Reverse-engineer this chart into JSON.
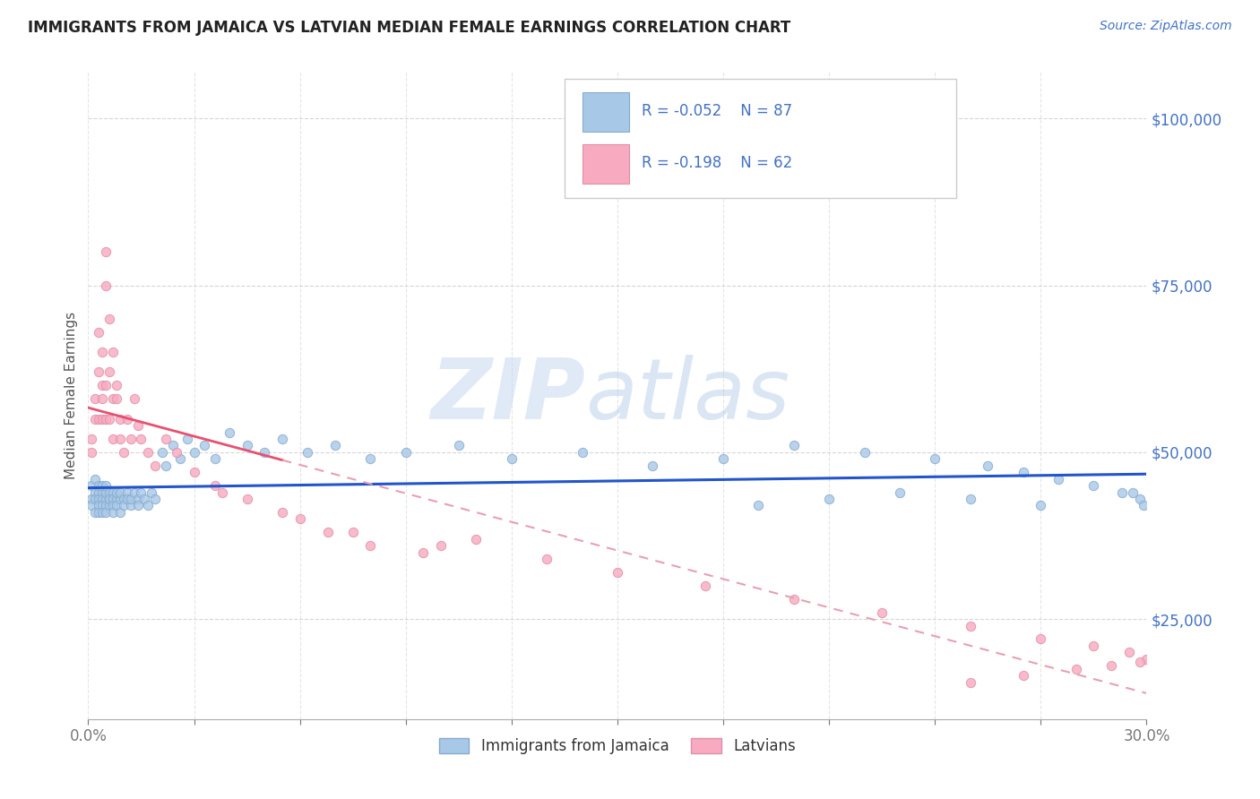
{
  "title": "IMMIGRANTS FROM JAMAICA VS LATVIAN MEDIAN FEMALE EARNINGS CORRELATION CHART",
  "source_text": "Source: ZipAtlas.com",
  "ylabel": "Median Female Earnings",
  "xlim": [
    0.0,
    0.3
  ],
  "ylim": [
    10000,
    107000
  ],
  "xticks": [
    0.0,
    0.03,
    0.06,
    0.09,
    0.12,
    0.15,
    0.18,
    0.21,
    0.24,
    0.27,
    0.3
  ],
  "xtick_labels": [
    "0.0%",
    "",
    "",
    "",
    "",
    "",
    "",
    "",
    "",
    "",
    "30.0%"
  ],
  "ytick_positions": [
    25000,
    50000,
    75000,
    100000
  ],
  "ytick_labels": [
    "$25,000",
    "$50,000",
    "$75,000",
    "$100,000"
  ],
  "series1_color": "#a8c8e8",
  "series2_color": "#f8aac0",
  "series1_line_color": "#2255cc",
  "series2_line_solid_color": "#e85070",
  "series2_line_dash_color": "#e8a0b0",
  "legend_r1": "R = -0.052",
  "legend_n1": "N = 87",
  "legend_r2": "R = -0.198",
  "legend_n2": "N = 62",
  "legend_label1": "Immigrants from Jamaica",
  "legend_label2": "Latvians",
  "watermark_zip": "ZIP",
  "watermark_atlas": "atlas",
  "background_color": "#ffffff",
  "grid_color": "#cccccc",
  "title_color": "#222222",
  "axis_label_color": "#555555",
  "legend_text_color": "#4472c4",
  "ytick_color": "#4472c4",
  "xtick_color": "#777777",
  "series1_x": [
    0.001,
    0.001,
    0.001,
    0.002,
    0.002,
    0.002,
    0.002,
    0.003,
    0.003,
    0.003,
    0.003,
    0.003,
    0.004,
    0.004,
    0.004,
    0.004,
    0.004,
    0.005,
    0.005,
    0.005,
    0.005,
    0.005,
    0.006,
    0.006,
    0.006,
    0.006,
    0.007,
    0.007,
    0.007,
    0.007,
    0.008,
    0.008,
    0.008,
    0.009,
    0.009,
    0.009,
    0.01,
    0.01,
    0.011,
    0.011,
    0.012,
    0.012,
    0.013,
    0.014,
    0.014,
    0.015,
    0.016,
    0.017,
    0.018,
    0.019,
    0.021,
    0.022,
    0.024,
    0.026,
    0.028,
    0.03,
    0.033,
    0.036,
    0.04,
    0.045,
    0.05,
    0.055,
    0.062,
    0.07,
    0.08,
    0.09,
    0.105,
    0.12,
    0.14,
    0.16,
    0.18,
    0.2,
    0.22,
    0.24,
    0.255,
    0.265,
    0.275,
    0.285,
    0.293,
    0.298,
    0.299,
    0.296,
    0.27,
    0.25,
    0.23,
    0.21,
    0.19
  ],
  "series1_y": [
    43000,
    45000,
    42000,
    44000,
    46000,
    43000,
    41000,
    44000,
    43000,
    45000,
    42000,
    41000,
    44000,
    43000,
    45000,
    42000,
    41000,
    43000,
    44000,
    42000,
    45000,
    41000,
    43000,
    44000,
    42000,
    43000,
    44000,
    43000,
    42000,
    41000,
    43000,
    44000,
    42000,
    43000,
    41000,
    44000,
    43000,
    42000,
    44000,
    43000,
    42000,
    43000,
    44000,
    43000,
    42000,
    44000,
    43000,
    42000,
    44000,
    43000,
    50000,
    48000,
    51000,
    49000,
    52000,
    50000,
    51000,
    49000,
    53000,
    51000,
    50000,
    52000,
    50000,
    51000,
    49000,
    50000,
    51000,
    49000,
    50000,
    48000,
    49000,
    51000,
    50000,
    49000,
    48000,
    47000,
    46000,
    45000,
    44000,
    43000,
    42000,
    44000,
    42000,
    43000,
    44000,
    43000,
    42000
  ],
  "series2_x": [
    0.001,
    0.001,
    0.002,
    0.002,
    0.003,
    0.003,
    0.003,
    0.004,
    0.004,
    0.004,
    0.004,
    0.005,
    0.005,
    0.005,
    0.005,
    0.006,
    0.006,
    0.006,
    0.007,
    0.007,
    0.007,
    0.008,
    0.008,
    0.009,
    0.009,
    0.01,
    0.011,
    0.012,
    0.013,
    0.014,
    0.015,
    0.017,
    0.019,
    0.022,
    0.025,
    0.03,
    0.036,
    0.045,
    0.055,
    0.068,
    0.08,
    0.095,
    0.11,
    0.13,
    0.15,
    0.175,
    0.2,
    0.225,
    0.25,
    0.27,
    0.285,
    0.295,
    0.3,
    0.298,
    0.29,
    0.28,
    0.265,
    0.25,
    0.038,
    0.06,
    0.075,
    0.1
  ],
  "series2_y": [
    50000,
    52000,
    58000,
    55000,
    62000,
    68000,
    55000,
    65000,
    60000,
    55000,
    58000,
    75000,
    80000,
    60000,
    55000,
    70000,
    62000,
    55000,
    65000,
    58000,
    52000,
    58000,
    60000,
    55000,
    52000,
    50000,
    55000,
    52000,
    58000,
    54000,
    52000,
    50000,
    48000,
    52000,
    50000,
    47000,
    45000,
    43000,
    41000,
    38000,
    36000,
    35000,
    37000,
    34000,
    32000,
    30000,
    28000,
    26000,
    24000,
    22000,
    21000,
    20000,
    19000,
    18500,
    18000,
    17500,
    16500,
    15500,
    44000,
    40000,
    38000,
    36000
  ]
}
